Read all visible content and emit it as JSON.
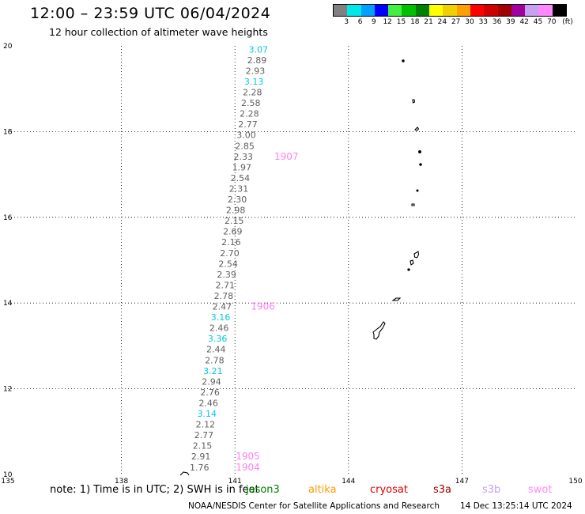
{
  "header": {
    "title": "12:00 – 23:59 UTC 06/04/2024",
    "subtitle": "12 hour collection of altimeter wave heights"
  },
  "legend": {
    "colors": [
      "#808080",
      "#00e8e8",
      "#00a0ff",
      "#0000ff",
      "#44ee44",
      "#00c000",
      "#008000",
      "#ffff00",
      "#f0d000",
      "#ffa000",
      "#ff0000",
      "#d00000",
      "#a00000",
      "#a000a0",
      "#c8a0f0",
      "#ff88ff",
      "#000000"
    ],
    "labels": [
      "3",
      "6",
      "9",
      "12",
      "15",
      "18",
      "21",
      "24",
      "27",
      "30",
      "33",
      "36",
      "39",
      "42",
      "45",
      "70"
    ],
    "unit": "(ft)"
  },
  "axes": {
    "x_ticks": [
      "135",
      "138",
      "141",
      "144",
      "147",
      "150"
    ],
    "y_ticks": [
      "20",
      "18",
      "16",
      "14",
      "12",
      "10"
    ]
  },
  "tracks": {
    "wave_heights": [
      {
        "lat": 19.92,
        "lon": 141.62,
        "v": "3.07",
        "c": "cyan"
      },
      {
        "lat": 19.67,
        "lon": 141.58,
        "v": "2.89",
        "c": "gray"
      },
      {
        "lat": 19.42,
        "lon": 141.54,
        "v": "2.93",
        "c": "gray"
      },
      {
        "lat": 19.17,
        "lon": 141.5,
        "v": "3.13",
        "c": "cyan"
      },
      {
        "lat": 18.92,
        "lon": 141.46,
        "v": "2.28",
        "c": "gray"
      },
      {
        "lat": 18.67,
        "lon": 141.42,
        "v": "2.58",
        "c": "gray"
      },
      {
        "lat": 18.42,
        "lon": 141.38,
        "v": "2.28",
        "c": "gray"
      },
      {
        "lat": 18.17,
        "lon": 141.34,
        "v": "2.77",
        "c": "gray"
      },
      {
        "lat": 17.92,
        "lon": 141.3,
        "v": "3.00",
        "c": "gray"
      },
      {
        "lat": 17.67,
        "lon": 141.26,
        "v": "2.85",
        "c": "gray"
      },
      {
        "lat": 17.42,
        "lon": 141.22,
        "v": "2.33",
        "c": "gray"
      },
      {
        "lat": 17.17,
        "lon": 141.18,
        "v": "1.97",
        "c": "gray"
      },
      {
        "lat": 16.92,
        "lon": 141.14,
        "v": "2.54",
        "c": "gray"
      },
      {
        "lat": 16.67,
        "lon": 141.1,
        "v": "2.31",
        "c": "gray"
      },
      {
        "lat": 16.42,
        "lon": 141.06,
        "v": "2.30",
        "c": "gray"
      },
      {
        "lat": 16.17,
        "lon": 141.02,
        "v": "2.98",
        "c": "gray"
      },
      {
        "lat": 15.92,
        "lon": 140.98,
        "v": "2.15",
        "c": "gray"
      },
      {
        "lat": 15.67,
        "lon": 140.94,
        "v": "2.69",
        "c": "gray"
      },
      {
        "lat": 15.42,
        "lon": 140.9,
        "v": "2.16",
        "c": "gray"
      },
      {
        "lat": 15.17,
        "lon": 140.86,
        "v": "2.70",
        "c": "gray"
      },
      {
        "lat": 14.92,
        "lon": 140.82,
        "v": "2.54",
        "c": "gray"
      },
      {
        "lat": 14.67,
        "lon": 140.78,
        "v": "2.39",
        "c": "gray"
      },
      {
        "lat": 14.42,
        "lon": 140.74,
        "v": "2.71",
        "c": "gray"
      },
      {
        "lat": 14.17,
        "lon": 140.7,
        "v": "2.78",
        "c": "gray"
      },
      {
        "lat": 13.92,
        "lon": 140.66,
        "v": "2.47",
        "c": "gray"
      },
      {
        "lat": 13.67,
        "lon": 140.62,
        "v": "3.16",
        "c": "cyan"
      },
      {
        "lat": 13.42,
        "lon": 140.58,
        "v": "2.46",
        "c": "gray"
      },
      {
        "lat": 13.17,
        "lon": 140.54,
        "v": "3.36",
        "c": "cyan"
      },
      {
        "lat": 12.92,
        "lon": 140.5,
        "v": "2.44",
        "c": "gray"
      },
      {
        "lat": 12.67,
        "lon": 140.46,
        "v": "2.78",
        "c": "gray"
      },
      {
        "lat": 12.42,
        "lon": 140.42,
        "v": "3.21",
        "c": "cyan"
      },
      {
        "lat": 12.17,
        "lon": 140.38,
        "v": "2.94",
        "c": "gray"
      },
      {
        "lat": 11.92,
        "lon": 140.34,
        "v": "2.76",
        "c": "gray"
      },
      {
        "lat": 11.67,
        "lon": 140.3,
        "v": "2.46",
        "c": "gray"
      },
      {
        "lat": 11.42,
        "lon": 140.26,
        "v": "3.14",
        "c": "cyan"
      },
      {
        "lat": 11.17,
        "lon": 140.22,
        "v": "2.12",
        "c": "gray"
      },
      {
        "lat": 10.92,
        "lon": 140.18,
        "v": "2.77",
        "c": "gray"
      },
      {
        "lat": 10.67,
        "lon": 140.14,
        "v": "2.15",
        "c": "gray"
      },
      {
        "lat": 10.42,
        "lon": 140.1,
        "v": "2.91",
        "c": "gray"
      },
      {
        "lat": 10.17,
        "lon": 140.06,
        "v": "1.76",
        "c": "gray"
      }
    ],
    "time_labels": [
      {
        "lat": 17.42,
        "lon": 142.36,
        "t": "1907"
      },
      {
        "lat": 13.92,
        "lon": 141.74,
        "t": "1906"
      },
      {
        "lat": 10.42,
        "lon": 141.34,
        "t": "1905"
      },
      {
        "lat": 10.17,
        "lon": 141.34,
        "t": "1904"
      }
    ]
  },
  "colors": {
    "cyan": "#00c8e0",
    "gray": "#606060",
    "magenta": "#ff7ef0"
  },
  "note": "note: 1) Time is in UTC; 2) SWH is in feet",
  "satellites": [
    {
      "name": "jason3",
      "color": "#008000"
    },
    {
      "name": "altika",
      "color": "#ff9900"
    },
    {
      "name": "cryosat",
      "color": "#dd0000"
    },
    {
      "name": "s3a",
      "color": "#a00000"
    },
    {
      "name": "s3b",
      "color": "#c8a0f0"
    },
    {
      "name": "swot",
      "color": "#ff88ff"
    }
  ],
  "footer": {
    "agency": "NOAA/NESDIS Center for Satellite Applications and Research",
    "timestamp": "14 Dec 13:25:14 UTC 2024"
  }
}
